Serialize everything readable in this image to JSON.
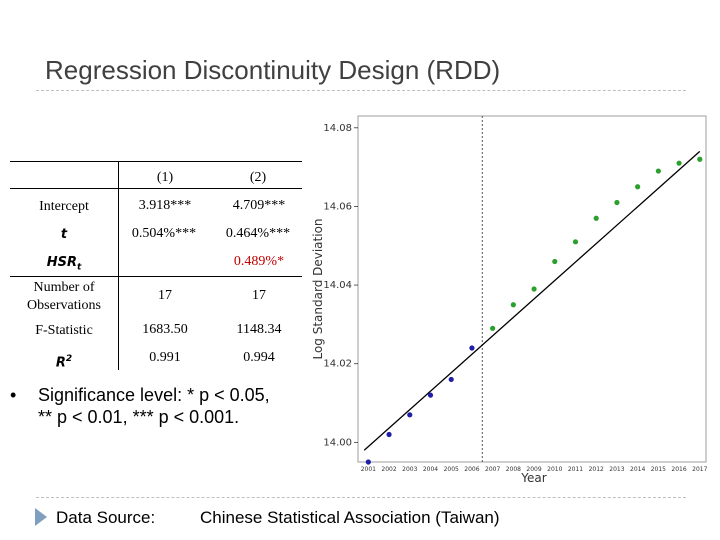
{
  "slide": {
    "title": "Regression Discontinuity Design (RDD)"
  },
  "table": {
    "columns": [
      "(1)",
      "(2)"
    ],
    "rows": [
      {
        "label": "Intercept",
        "label_style": "plain",
        "c1": "3.918***",
        "c2": "4.709***"
      },
      {
        "label": "t",
        "label_style": "math",
        "c1": "0.504%***",
        "c2": "0.464%***"
      },
      {
        "label": "HSR",
        "label_sub": "t",
        "label_style": "math",
        "c1": "",
        "c2": "0.489%*"
      },
      {
        "label": "Number of Observations",
        "label_style": "plain",
        "c1": "17",
        "c2": "17"
      },
      {
        "label": "F-Statistic",
        "label_style": "plain",
        "c1": "1683.50",
        "c2": "1148.34"
      },
      {
        "label": "R",
        "label_sup": "2",
        "label_style": "math",
        "c1": "0.991",
        "c2": "0.994"
      }
    ]
  },
  "note": {
    "bullet": "•",
    "line1": "Significance level: * p < 0.05,",
    "line2": "** p < 0.01, *** p < 0.001."
  },
  "source": {
    "label": "Data Source:",
    "value": "Chinese Statistical Association (Taiwan)"
  },
  "colors": {
    "pre_points": "#1f1fa8",
    "post_points": "#2ca02c",
    "highlight": "#c00000",
    "title": "#404040"
  },
  "chart_data": {
    "type": "scatter",
    "xlabel": "Year",
    "ylabel": "Log Standard Deviation",
    "x_tick_labels": [
      "2001",
      "2002",
      "2003",
      "2004",
      "2005",
      "2006",
      "2007",
      "2008",
      "2009",
      "2010",
      "2011",
      "2012",
      "2013",
      "2014",
      "2015",
      "2016",
      "2017"
    ],
    "y_ticks": [
      "14.00",
      "14.02",
      "14.04",
      "14.06",
      "14.08"
    ],
    "xlim": [
      2000.5,
      2017.3
    ],
    "ylim": [
      13.995,
      14.083
    ],
    "cutoff_year": 2006.5,
    "fit_line": {
      "x": [
        2000.8,
        2017
      ],
      "y": [
        13.998,
        14.074
      ]
    },
    "series": [
      {
        "group": "pre",
        "color": "#1f1fa8",
        "x": [
          2001,
          2002,
          2003,
          2004,
          2005,
          2006
        ],
        "y": [
          13.995,
          14.002,
          14.007,
          14.012,
          14.016,
          14.024
        ]
      },
      {
        "group": "post",
        "color": "#2ca02c",
        "x": [
          2007,
          2008,
          2009,
          2010,
          2011,
          2012,
          2013,
          2014,
          2015,
          2016,
          2017
        ],
        "y": [
          14.029,
          14.035,
          14.039,
          14.046,
          14.051,
          14.057,
          14.061,
          14.065,
          14.069,
          14.071,
          14.072
        ]
      }
    ]
  }
}
